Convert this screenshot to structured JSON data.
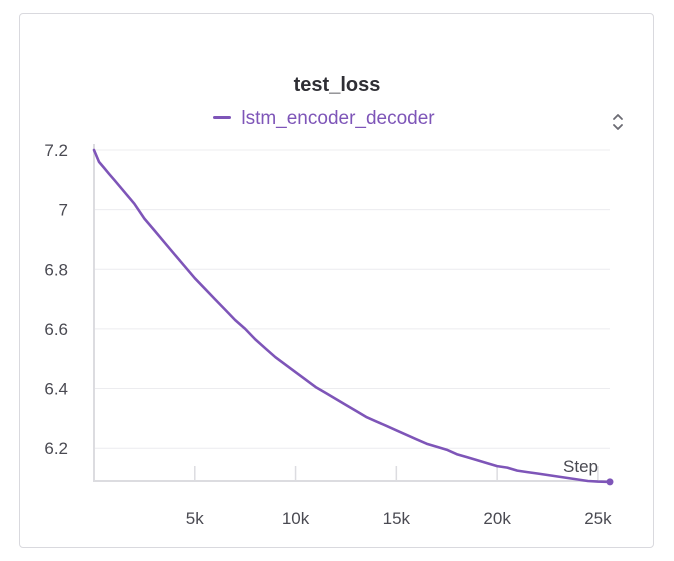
{
  "chart_data": {
    "type": "line",
    "title": "test_loss",
    "xlabel": "Step",
    "ylabel": "",
    "xlim": [
      0,
      25600
    ],
    "ylim": [
      6.09,
      7.2
    ],
    "grid": true,
    "legend_placement": "top-center",
    "x_ticks": [
      5000,
      10000,
      15000,
      20000,
      25000
    ],
    "x_tick_labels": [
      "5k",
      "10k",
      "15k",
      "20k",
      "25k"
    ],
    "y_ticks": [
      6.2,
      6.4,
      6.6,
      6.8,
      7,
      7.2
    ],
    "y_tick_labels": [
      "6.2",
      "6.4",
      "6.6",
      "6.8",
      "7",
      "7.2"
    ],
    "series": [
      {
        "name": "lstm_encoder_decoder",
        "color": "#7e55b8",
        "x": [
          0,
          250,
          500,
          750,
          1000,
          1500,
          2000,
          2500,
          3000,
          3500,
          4000,
          4500,
          5000,
          5500,
          6000,
          6500,
          7000,
          7500,
          8000,
          8500,
          9000,
          9500,
          10000,
          10500,
          11000,
          11500,
          12000,
          12500,
          13000,
          13500,
          14000,
          14500,
          15000,
          15500,
          16000,
          16500,
          17000,
          17500,
          18000,
          18500,
          19000,
          19500,
          20000,
          20500,
          21000,
          21500,
          22000,
          22500,
          23000,
          23500,
          24000,
          24500,
          25000,
          25600
        ],
        "y": [
          7.2,
          7.16,
          7.14,
          7.12,
          7.1,
          7.06,
          7.02,
          6.97,
          6.93,
          6.89,
          6.85,
          6.81,
          6.77,
          6.735,
          6.7,
          6.665,
          6.63,
          6.6,
          6.565,
          6.535,
          6.505,
          6.48,
          6.455,
          6.43,
          6.405,
          6.385,
          6.365,
          6.345,
          6.325,
          6.305,
          6.29,
          6.275,
          6.26,
          6.245,
          6.23,
          6.215,
          6.205,
          6.195,
          6.18,
          6.17,
          6.16,
          6.15,
          6.14,
          6.135,
          6.125,
          6.12,
          6.115,
          6.11,
          6.105,
          6.1,
          6.095,
          6.09,
          6.088,
          6.087
        ]
      }
    ]
  },
  "controls": {
    "sort_icon": "sort-updown-icon"
  }
}
